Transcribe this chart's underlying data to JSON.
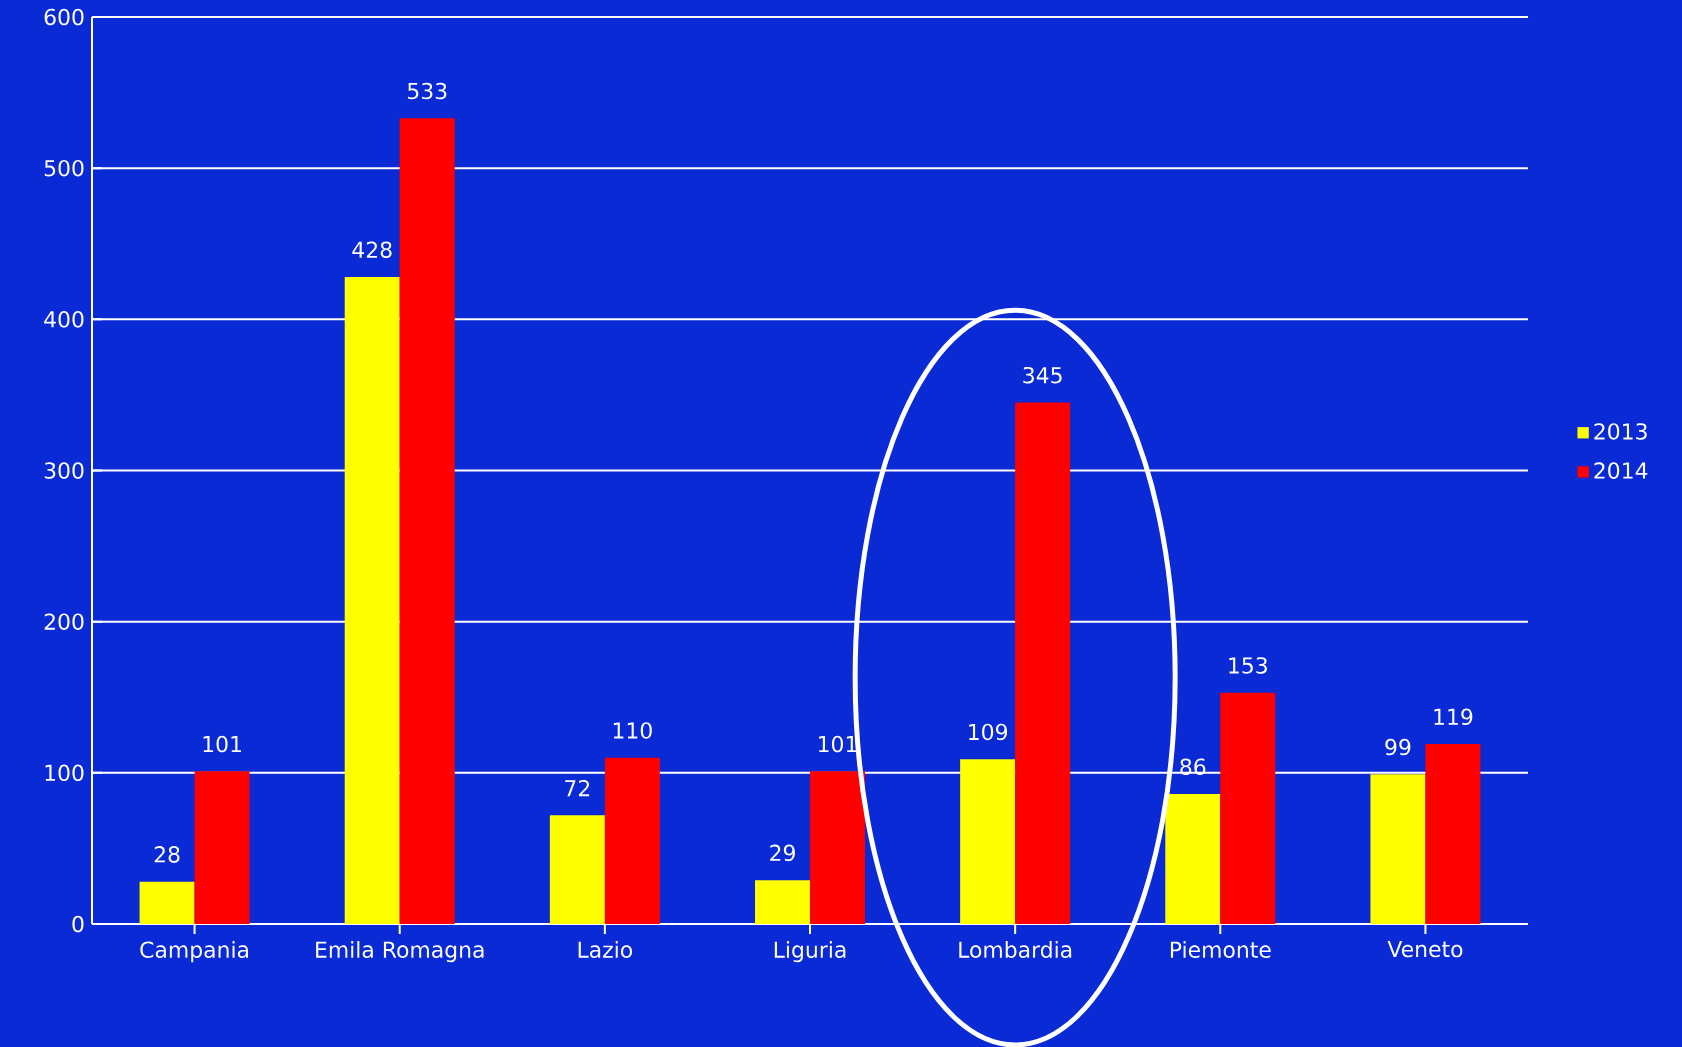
{
  "chart_data": {
    "type": "bar",
    "categories": [
      "Campania",
      "Emila Romagna",
      "Lazio",
      "Liguria",
      "Lombardia",
      "Piemonte",
      "Veneto"
    ],
    "series": [
      {
        "name": "2013",
        "color": "#ffff00",
        "values": [
          28,
          428,
          72,
          29,
          109,
          86,
          99
        ]
      },
      {
        "name": "2014",
        "color": "#ff0000",
        "values": [
          101,
          533,
          110,
          101,
          345,
          153,
          119
        ]
      }
    ],
    "ylim": [
      0,
      600
    ],
    "yticks": [
      0,
      100,
      200,
      300,
      400,
      500,
      600
    ],
    "grid": "y",
    "legend": "right",
    "data_labels": true
  }
}
